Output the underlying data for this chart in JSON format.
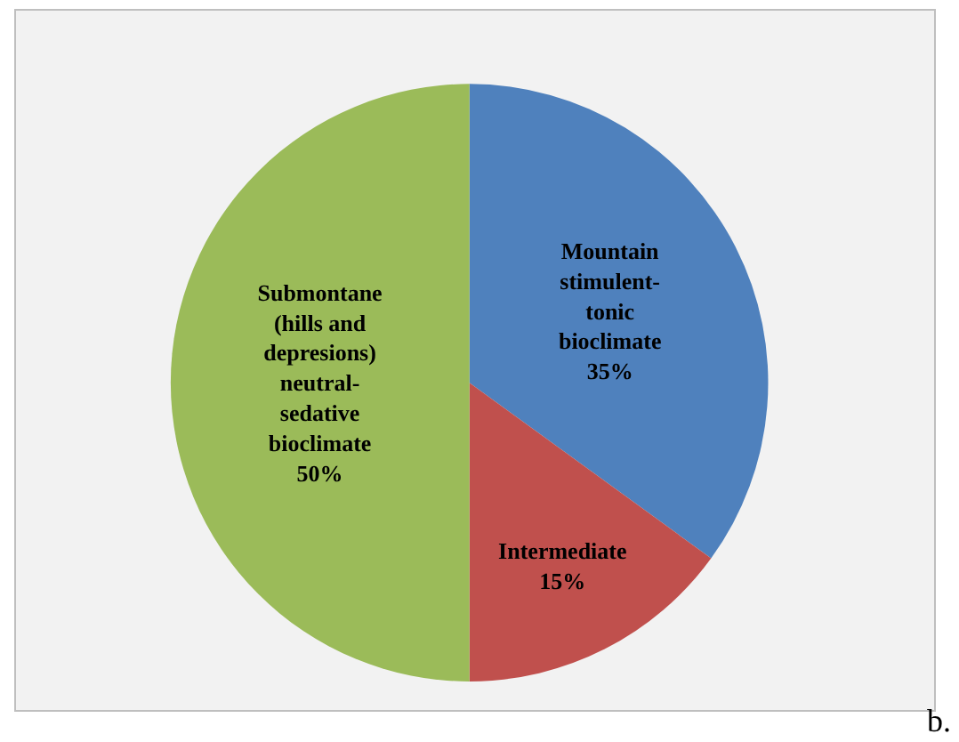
{
  "chart_data": {
    "type": "pie",
    "categories": [
      "Mountain\nstimulent-\ntonic\nbioclimate",
      "Intermediate",
      "Submontane\n(hills and\ndepresions)\nneutral-\nsedative\nbioclimate"
    ],
    "values": [
      35,
      15,
      50
    ],
    "value_labels": [
      "35%",
      "15%",
      "50%"
    ],
    "colors": [
      "#4f81bd",
      "#c0504d",
      "#9bbb59"
    ],
    "legend": false,
    "annotations": [
      "b."
    ]
  }
}
